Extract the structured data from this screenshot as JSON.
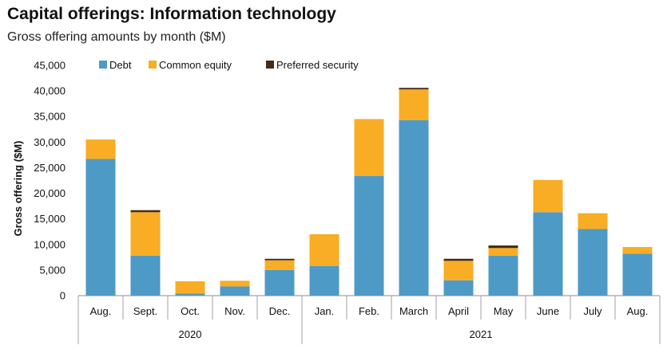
{
  "header": {
    "title": "Capital offerings: Information technology",
    "subtitle": "Gross offering amounts by month ($M)"
  },
  "chart_data": {
    "type": "bar",
    "stacked": true,
    "title": "Capital offerings: Information technology",
    "subtitle": "Gross offering amounts by month ($M)",
    "xlabel": "",
    "ylabel": "Gross offering ($M)",
    "ylim": [
      0,
      45000
    ],
    "yticks": [
      0,
      5000,
      10000,
      15000,
      20000,
      25000,
      30000,
      35000,
      40000,
      45000
    ],
    "ytick_labels": [
      "0",
      "5,000",
      "10,000",
      "15,000",
      "20,000",
      "25,000",
      "30,000",
      "35,000",
      "40,000",
      "45,000"
    ],
    "grid": false,
    "legend": "top",
    "categories": [
      "Aug.",
      "Sept.",
      "Oct.",
      "Nov.",
      "Dec.",
      "Jan.",
      "Feb.",
      "March",
      "April",
      "May",
      "June",
      "July",
      "Aug."
    ],
    "groups": [
      {
        "label": "2020",
        "count": 5
      },
      {
        "label": "2021",
        "count": 8
      }
    ],
    "series": [
      {
        "name": "Debt",
        "color": "#4d9ac6",
        "values": [
          26700,
          7800,
          400,
          1800,
          5000,
          5800,
          23400,
          34300,
          3000,
          7800,
          16300,
          13000,
          8200
        ]
      },
      {
        "name": "Common equity",
        "color": "#f8ad24",
        "values": [
          3800,
          8500,
          2400,
          1100,
          1900,
          6200,
          11100,
          6000,
          3800,
          1500,
          6300,
          3100,
          1300
        ]
      },
      {
        "name": "Preferred security",
        "color": "#4a2a12",
        "values": [
          0,
          400,
          0,
          0,
          300,
          0,
          0,
          300,
          400,
          500,
          0,
          0,
          0
        ]
      }
    ]
  }
}
